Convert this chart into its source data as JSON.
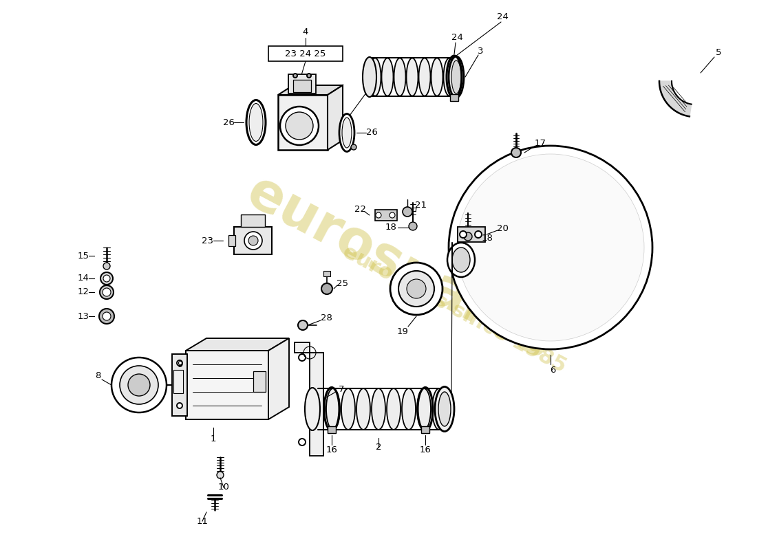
{
  "bg_color": "#ffffff",
  "wm_color": "#c8b830",
  "lw": 1.4,
  "fs": 9.5
}
